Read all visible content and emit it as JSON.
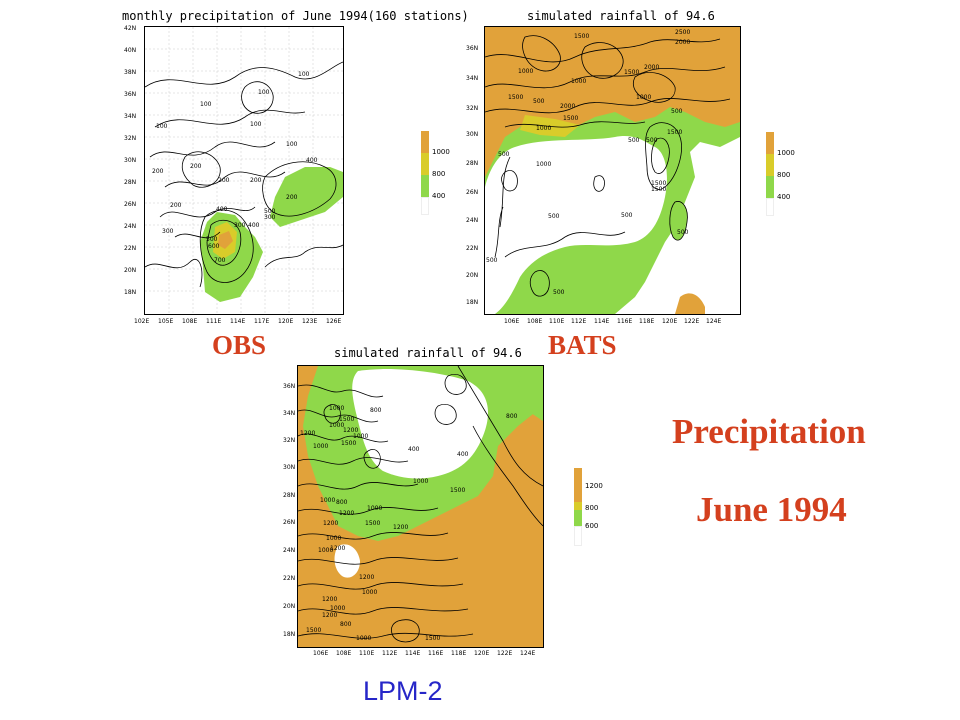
{
  "colors": {
    "orange": "#e1a23a",
    "yellow": "#d9cc2a",
    "green": "#8fd84a",
    "red": "#d4401e",
    "blue": "#2626c8"
  },
  "panels": {
    "obs": {
      "title": "monthly precipitation of June 1994(160 stations)",
      "lat_ticks": [
        "42N",
        "40N",
        "38N",
        "36N",
        "34N",
        "32N",
        "30N",
        "28N",
        "26N",
        "24N",
        "22N",
        "20N",
        "18N"
      ],
      "lon_ticks": [
        "102E",
        "105E",
        "108E",
        "111E",
        "114E",
        "117E",
        "120E",
        "123E",
        "126E"
      ],
      "legend": [
        "1000",
        "800",
        "400"
      ],
      "contour_labels": [
        "100",
        "100",
        "100",
        "100",
        "100",
        "100",
        "200",
        "200",
        "200",
        "200",
        "200",
        "200",
        "300",
        "300",
        "300",
        "400",
        "400",
        "400",
        "500",
        "500",
        "600",
        "700"
      ]
    },
    "bats": {
      "title": "simulated rainfall of 94.6",
      "lat_ticks": [
        "36N",
        "34N",
        "32N",
        "30N",
        "28N",
        "26N",
        "24N",
        "22N",
        "20N",
        "18N"
      ],
      "lon_ticks": [
        "106E",
        "108E",
        "110E",
        "112E",
        "114E",
        "116E",
        "118E",
        "120E",
        "122E",
        "124E"
      ],
      "legend": [
        "1000",
        "800",
        "400"
      ],
      "contour_labels": [
        "1500",
        "2500",
        "2000",
        "1000",
        "1500",
        "2000",
        "1000",
        "1500",
        "500",
        "2000",
        "1500",
        "1000",
        "500",
        "500",
        "1000",
        "1500",
        "500",
        "500",
        "1000",
        "1500",
        "500",
        "500",
        "500",
        "1500",
        "500",
        "500"
      ]
    },
    "lpm": {
      "title": "simulated  rainfall of 94.6",
      "lat_ticks": [
        "36N",
        "34N",
        "32N",
        "30N",
        "28N",
        "26N",
        "24N",
        "22N",
        "20N",
        "18N"
      ],
      "lon_ticks": [
        "106E",
        "108E",
        "110E",
        "112E",
        "114E",
        "116E",
        "118E",
        "120E",
        "122E",
        "124E"
      ],
      "legend": [
        "1200",
        "800",
        "600"
      ],
      "contour_labels": [
        "1000",
        "1500",
        "1000",
        "1200",
        "800",
        "1200",
        "1500",
        "1000",
        "1000",
        "800",
        "400",
        "400",
        "1000",
        "1000",
        "800",
        "1500",
        "1200",
        "1000",
        "1200",
        "1500",
        "1000",
        "1200",
        "1000",
        "1200",
        "1200",
        "1000",
        "1200",
        "1000",
        "1200",
        "800",
        "1500",
        "1000",
        "1500"
      ]
    }
  },
  "labels": {
    "obs": "OBS",
    "bats": "BATS",
    "lpm": "LPM-2",
    "title_line1": "Precipitation",
    "title_line2": "June 1994"
  }
}
